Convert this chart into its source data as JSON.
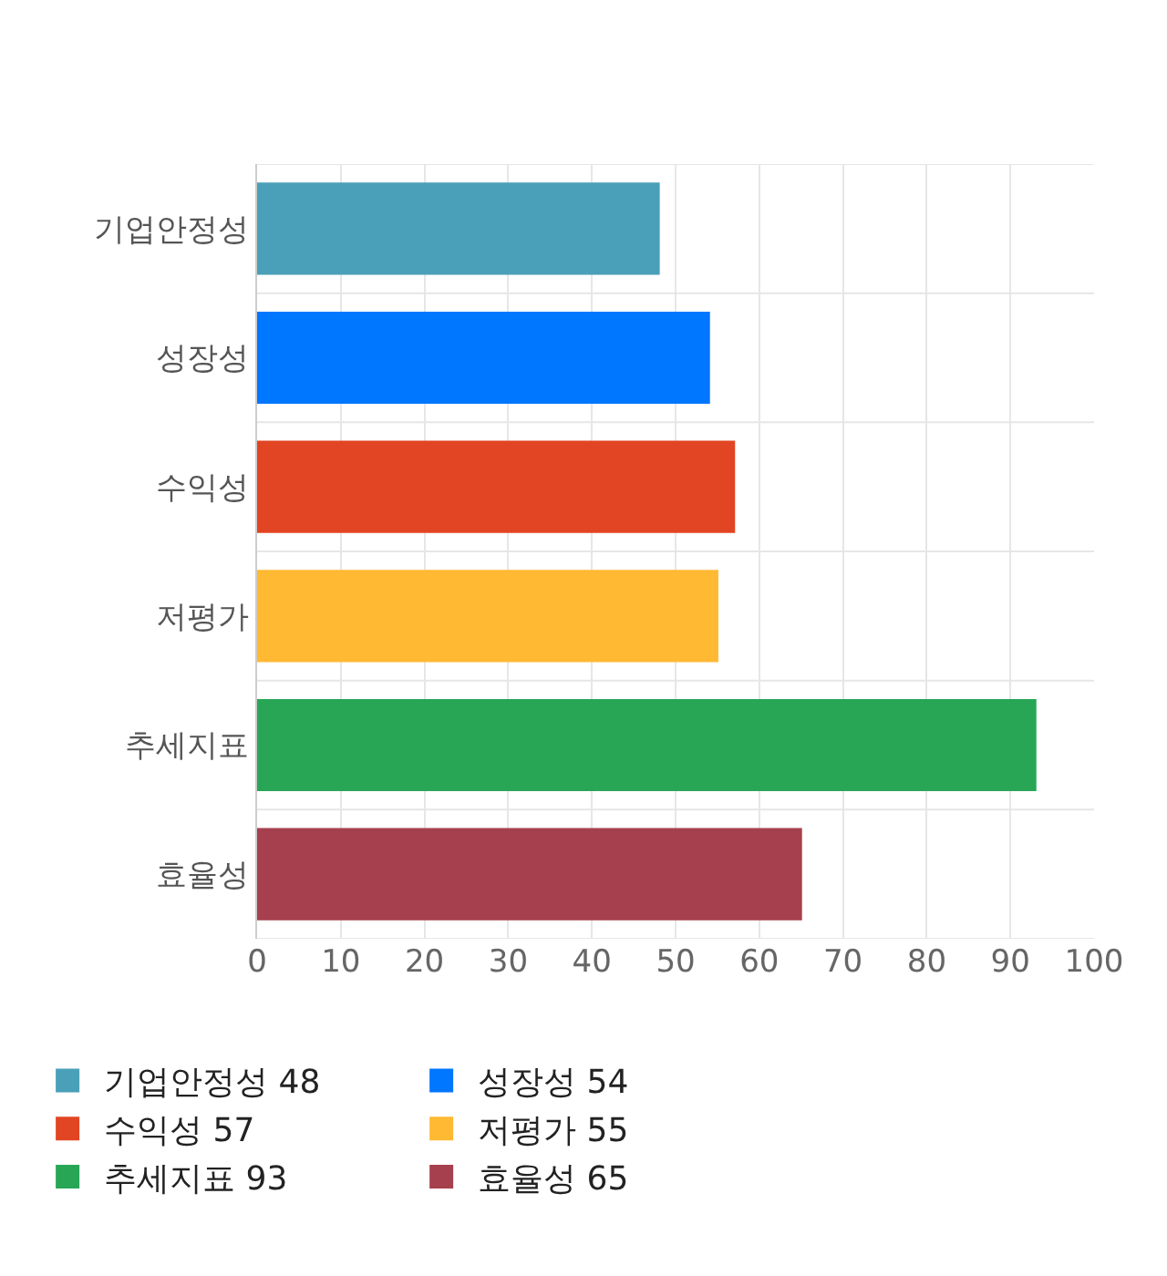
{
  "chart_data": {
    "type": "bar",
    "orientation": "horizontal",
    "categories": [
      "기업안정성",
      "성장성",
      "수익성",
      "저평가",
      "추세지표",
      "효율성"
    ],
    "series": [
      {
        "name": "기업안정성 48",
        "color": "#4aa0b9",
        "values": [
          48,
          null,
          null,
          null,
          null,
          null
        ]
      },
      {
        "name": "성장성 54",
        "color": "#0077ff",
        "values": [
          null,
          54,
          null,
          null,
          null,
          null
        ]
      },
      {
        "name": "수익성 57",
        "color": "#e24523",
        "values": [
          null,
          null,
          57,
          null,
          null,
          null
        ]
      },
      {
        "name": "저평가 55",
        "color": "#ffb933",
        "values": [
          null,
          null,
          null,
          55,
          null,
          null
        ]
      },
      {
        "name": "추세지표 93",
        "color": "#28a656",
        "values": [
          null,
          null,
          null,
          null,
          93,
          null
        ]
      },
      {
        "name": "효율성 65",
        "color": "#a6404e",
        "values": [
          null,
          null,
          null,
          null,
          null,
          65
        ]
      }
    ],
    "xlim": [
      0,
      100
    ],
    "xticks": [
      0,
      10,
      20,
      30,
      40,
      50,
      60,
      70,
      80,
      90,
      100
    ],
    "grid": true,
    "legend": "bottom"
  }
}
